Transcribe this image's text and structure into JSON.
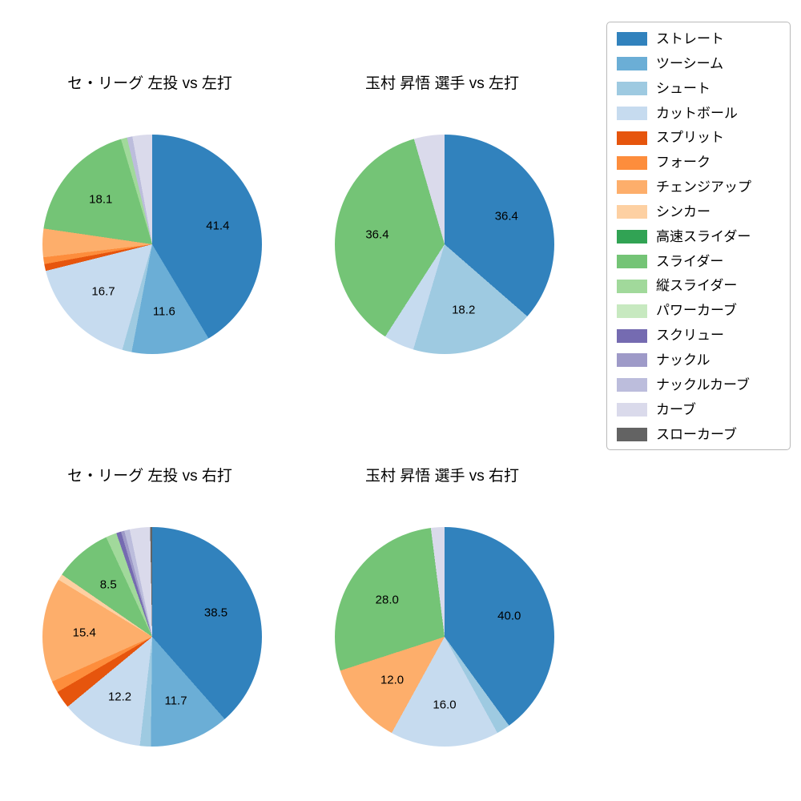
{
  "figure": {
    "background": "#ffffff"
  },
  "colors": {
    "ストレート": "#3182bd",
    "ツーシーム": "#6baed6",
    "シュート": "#9ecae1",
    "カットボール": "#c6dbef",
    "スプリット": "#e6550d",
    "フォーク": "#fd8d3c",
    "チェンジアップ": "#fdae6b",
    "シンカー": "#fdd0a2",
    "高速スライダー": "#31a354",
    "スライダー": "#74c476",
    "縦スライダー": "#a1d99b",
    "パワーカーブ": "#c7e9c0",
    "スクリュー": "#756bb1",
    "ナックル": "#9e9ac8",
    "ナックルカーブ": "#bcbddc",
    "カーブ": "#dadaeb",
    "スローカーブ": "#636363"
  },
  "legend": {
    "items": [
      "ストレート",
      "ツーシーム",
      "シュート",
      "カットボール",
      "スプリット",
      "フォーク",
      "チェンジアップ",
      "シンカー",
      "高速スライダー",
      "スライダー",
      "縦スライダー",
      "パワーカーブ",
      "スクリュー",
      "ナックル",
      "ナックルカーブ",
      "カーブ",
      "スローカーブ"
    ]
  },
  "chart_data": [
    {
      "type": "pie",
      "title": "セ・リーグ 左投 vs 左打",
      "start_angle_deg": 90,
      "direction": "clockwise",
      "labels": [
        "ストレート",
        "ツーシーム",
        "シュート",
        "カットボール",
        "スプリット",
        "フォーク",
        "チェンジアップ",
        "スライダー",
        "縦スライダー",
        "ナックルカーブ",
        "カーブ"
      ],
      "values": [
        41.4,
        11.6,
        1.4,
        16.7,
        1.0,
        1.0,
        4.2,
        18.1,
        0.9,
        0.8,
        2.9
      ],
      "displayed_value_labels": [
        "41.4",
        "11.6",
        "",
        "16.7",
        "",
        "",
        "",
        "18.1",
        "",
        "",
        ""
      ]
    },
    {
      "type": "pie",
      "title": "玉村 昇悟 選手 vs 左打",
      "start_angle_deg": 90,
      "direction": "clockwise",
      "labels": [
        "ストレート",
        "シュート",
        "カットボール",
        "スライダー",
        "カーブ"
      ],
      "values": [
        36.4,
        18.2,
        4.5,
        36.4,
        4.5
      ],
      "displayed_value_labels": [
        "36.4",
        "18.2",
        "",
        "36.4",
        ""
      ]
    },
    {
      "type": "pie",
      "title": "セ・リーグ 左投 vs 右打",
      "start_angle_deg": 90,
      "direction": "clockwise",
      "labels": [
        "ストレート",
        "ツーシーム",
        "シュート",
        "カットボール",
        "スプリット",
        "フォーク",
        "チェンジアップ",
        "シンカー",
        "スライダー",
        "縦スライダー",
        "スクリュー",
        "ナックル",
        "ナックルカーブ",
        "カーブ",
        "スローカーブ"
      ],
      "values": [
        38.5,
        11.7,
        1.6,
        12.2,
        2.6,
        1.7,
        15.4,
        0.9,
        8.5,
        1.6,
        0.7,
        0.5,
        0.8,
        3.0,
        0.3
      ],
      "displayed_value_labels": [
        "38.5",
        "11.7",
        "",
        "12.2",
        "",
        "",
        "15.4",
        "",
        "8.5",
        "",
        "",
        "",
        "",
        "",
        ""
      ]
    },
    {
      "type": "pie",
      "title": "玉村 昇悟 選手 vs 右打",
      "start_angle_deg": 90,
      "direction": "clockwise",
      "labels": [
        "ストレート",
        "シュート",
        "カットボール",
        "チェンジアップ",
        "スライダー",
        "カーブ"
      ],
      "values": [
        40.0,
        2.0,
        16.0,
        12.0,
        28.0,
        2.0
      ],
      "displayed_value_labels": [
        "40.0",
        "",
        "16.0",
        "12.0",
        "28.0",
        ""
      ]
    }
  ]
}
